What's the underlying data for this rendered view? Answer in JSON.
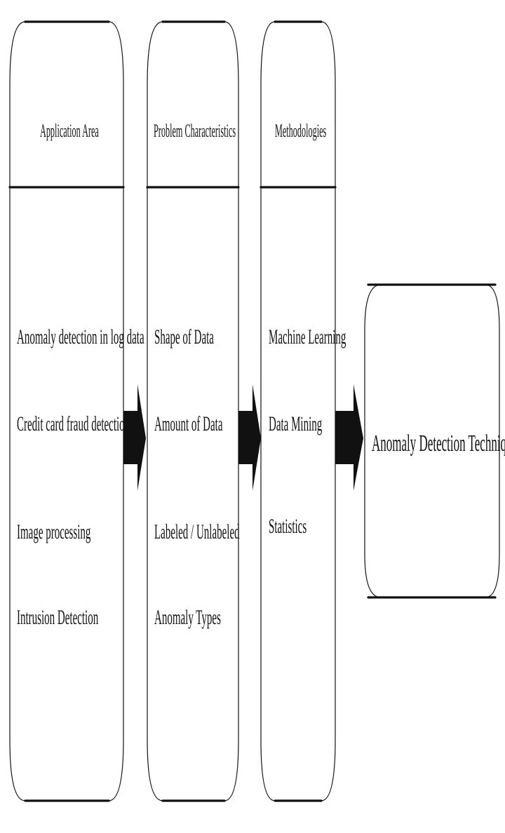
{
  "diagram": {
    "columns": [
      {
        "header": "Application Area",
        "items": [
          "Anomaly detection in log data",
          "Credit card fraud detection",
          "Image processing",
          "Intrusion Detection"
        ]
      },
      {
        "header": "Problem Characteristics",
        "items": [
          "Shape of Data",
          "Amount of Data",
          "Labeled / Unlabeled",
          "Anomaly Types"
        ]
      },
      {
        "header": "Methodologies",
        "items": [
          "Machine Learning",
          "Data Mining",
          "Statistics"
        ]
      }
    ],
    "result": "Anomaly Detection Technique"
  }
}
